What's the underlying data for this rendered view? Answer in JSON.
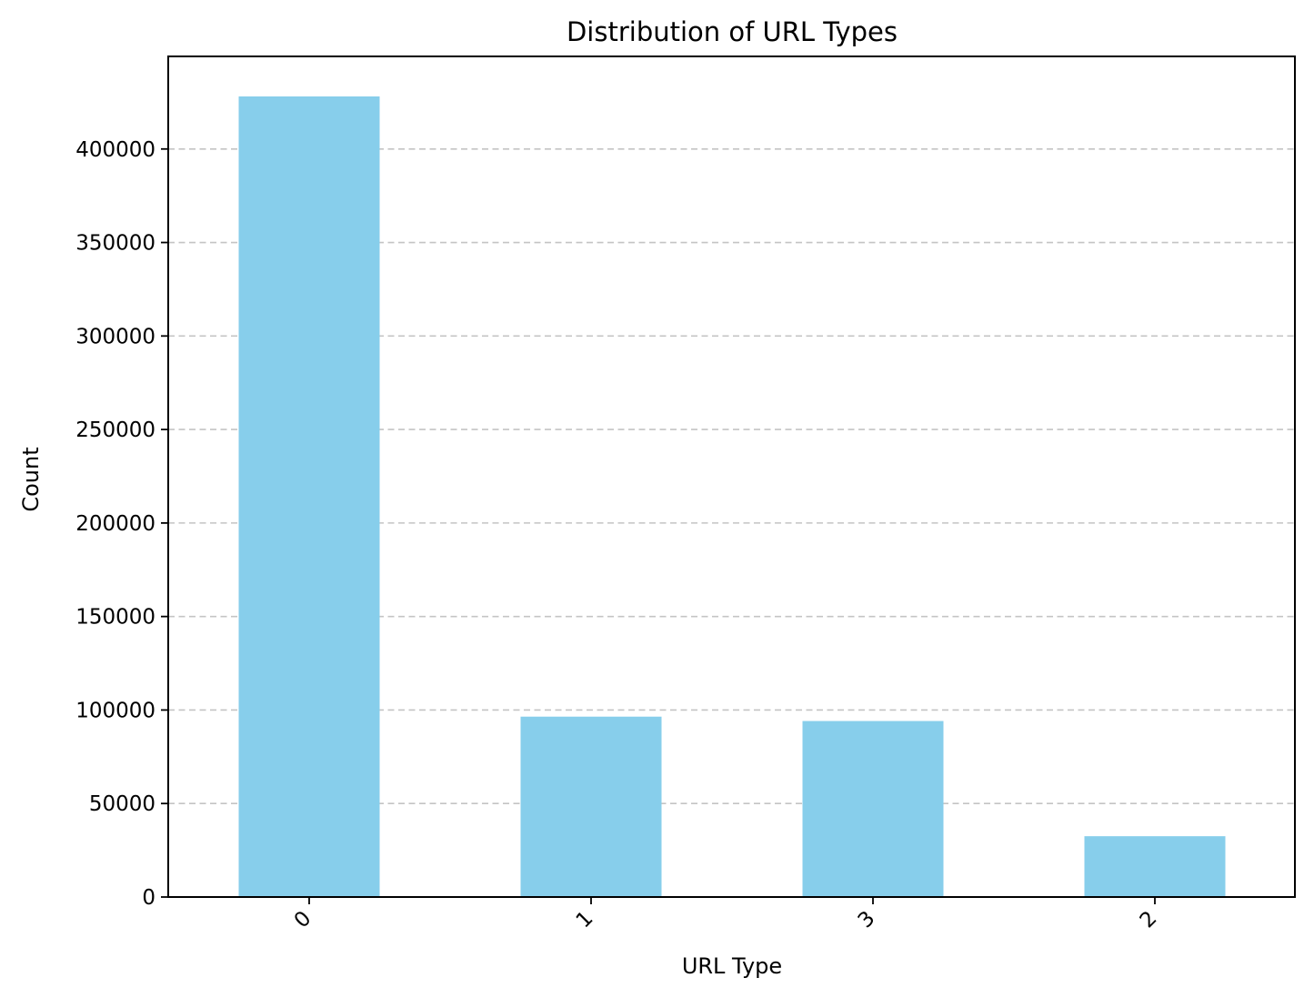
{
  "chart_data": {
    "type": "bar",
    "title": "Distribution of URL Types",
    "xlabel": "URL Type",
    "ylabel": "Count",
    "categories": [
      "0",
      "1",
      "3",
      "2"
    ],
    "values": [
      428103,
      96457,
      94111,
      32520
    ],
    "ylim": [
      0,
      449508
    ],
    "yticks": [
      0,
      50000,
      100000,
      150000,
      200000,
      250000,
      300000,
      350000,
      400000
    ],
    "ytick_labels": [
      "0",
      "50000",
      "100000",
      "150000",
      "200000",
      "250000",
      "300000",
      "350000",
      "400000"
    ],
    "grid": "y-axis dashed",
    "legend": "none",
    "bar_color": "#87CEEB",
    "xtick_rotation": 45
  }
}
